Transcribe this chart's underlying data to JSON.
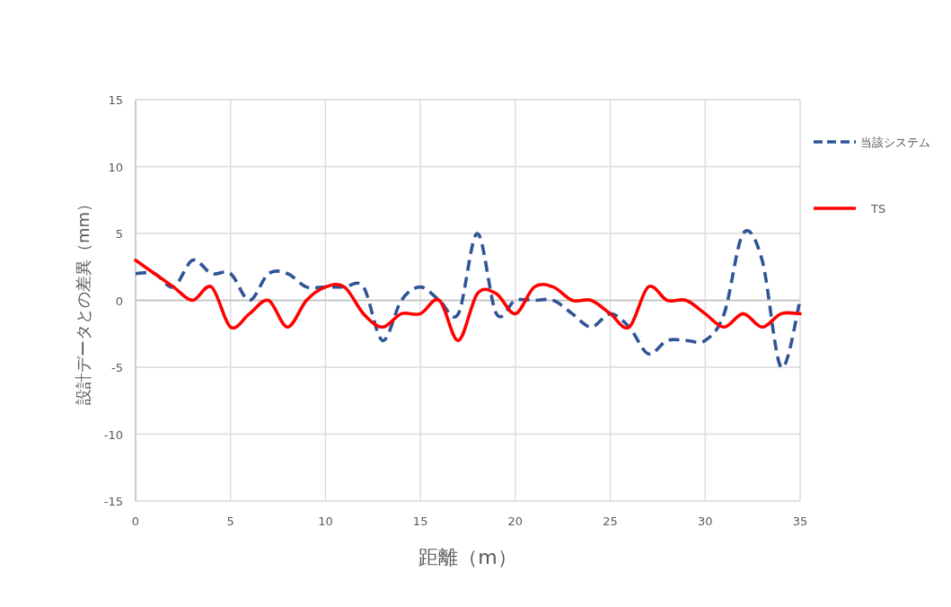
{
  "chart_data": {
    "type": "line",
    "xlabel": "距離（m）",
    "ylabel": "設計データとの差異（mm）",
    "x": [
      0,
      1,
      2,
      3,
      4,
      5,
      6,
      7,
      8,
      9,
      10,
      11,
      12,
      13,
      14,
      15,
      16,
      17,
      18,
      19,
      20,
      21,
      22,
      23,
      24,
      25,
      26,
      27,
      28,
      29,
      30,
      31,
      32,
      33,
      34,
      35
    ],
    "series": [
      {
        "name": "当該システム",
        "color": "#2f5597",
        "line_style": "dashed",
        "values": [
          2,
          2,
          1,
          3,
          2,
          2,
          0,
          2,
          2,
          1,
          1,
          1,
          1,
          -3,
          0,
          1,
          0,
          -1,
          5,
          -1,
          0,
          0,
          0,
          -1,
          -2,
          -1,
          -2,
          -4,
          -3,
          -3,
          -3,
          -1,
          5,
          3,
          -5,
          0
        ]
      },
      {
        "name": "TS",
        "color": "#ff0000",
        "line_style": "solid",
        "values": [
          3,
          2,
          1,
          0,
          1,
          -2,
          -1,
          0,
          -2,
          0,
          1,
          1,
          -1,
          -2,
          -1,
          -1,
          0,
          -3,
          0.5,
          0.5,
          -1,
          1,
          1,
          0,
          0,
          -1,
          -2,
          1,
          0,
          0,
          -1,
          -2,
          -1,
          -2,
          -1,
          -1
        ]
      }
    ],
    "xlim": [
      0,
      35
    ],
    "xticks": [
      0,
      5,
      10,
      15,
      20,
      25,
      30,
      35
    ],
    "ylim": [
      -15,
      15
    ],
    "yticks": [
      -15,
      -10,
      -5,
      0,
      5,
      10,
      15
    ],
    "grid": true,
    "legend": "right"
  }
}
